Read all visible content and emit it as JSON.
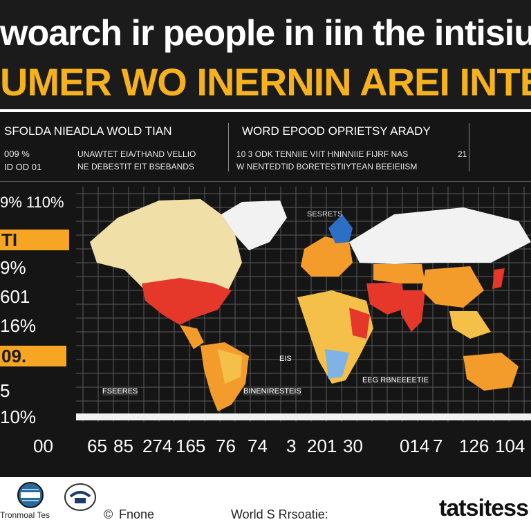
{
  "header": {
    "title_line1": "woarch ir people in iin the intisiung",
    "title_line2": "UMER WO INERNIN AREI INTETI'"
  },
  "info_left": {
    "heading": "SFOLDA NIEADLA WOLD TIAN",
    "row1_stat": "009 %",
    "row2_stat": "ID OD 01",
    "row1_text": "UNAWTET EIA/THAND VELLIO",
    "row2_text": "NE DEBESTIT EIT BSEBANDS"
  },
  "info_right": {
    "heading": "WORD EPOOD OPRIETSY ARADY",
    "row1_text": "10 3 ODK TENNIIE VIIT HNINNIIE FIJRF NAS",
    "row1_stat": "21",
    "row2_text": "W NENTEDTID BORETESTIIYTEAN BEEIEIISM"
  },
  "y_labels": [
    {
      "text": "9%  110%",
      "highlight": false
    },
    {
      "text": "TI",
      "highlight": true
    },
    {
      "text": "9%",
      "highlight": false
    },
    {
      "text": "601",
      "highlight": false
    },
    {
      "text": "16%",
      "highlight": false
    },
    {
      "text": "09.",
      "highlight": true
    },
    {
      "text": "5",
      "highlight": false
    },
    {
      "text": "10%",
      "highlight": false
    }
  ],
  "x_labels": [
    "00",
    "65",
    "85",
    "274",
    "165",
    "76",
    "74",
    "3",
    "201",
    "30",
    "014",
    "7",
    "126",
    "104"
  ],
  "map_labels": [
    {
      "text": "SESRETS"
    },
    {
      "text": "EIS"
    },
    {
      "text": "EEG RBNEEEETIE"
    },
    {
      "text": "FSEERES"
    },
    {
      "text": "BINENIRESTEIS"
    }
  ],
  "footer": {
    "org1": "Tronmoal Tes",
    "org2": "Fnone",
    "source": "World S Rrsoatie:",
    "brand": "tatsitess"
  },
  "colors": {
    "accent": "#f5b21e",
    "banner_bg": "#1b1b1b",
    "panel_bg": "#151515",
    "land_light": "#f1dfa8",
    "land_red": "#e5382a",
    "land_orange": "#f39c2b",
    "land_white": "#f2f2f2"
  },
  "icons": {
    "logo_left": "globe-seal-icon",
    "logo_mid": "crest-seal-icon",
    "copyright": "copyright-icon"
  }
}
